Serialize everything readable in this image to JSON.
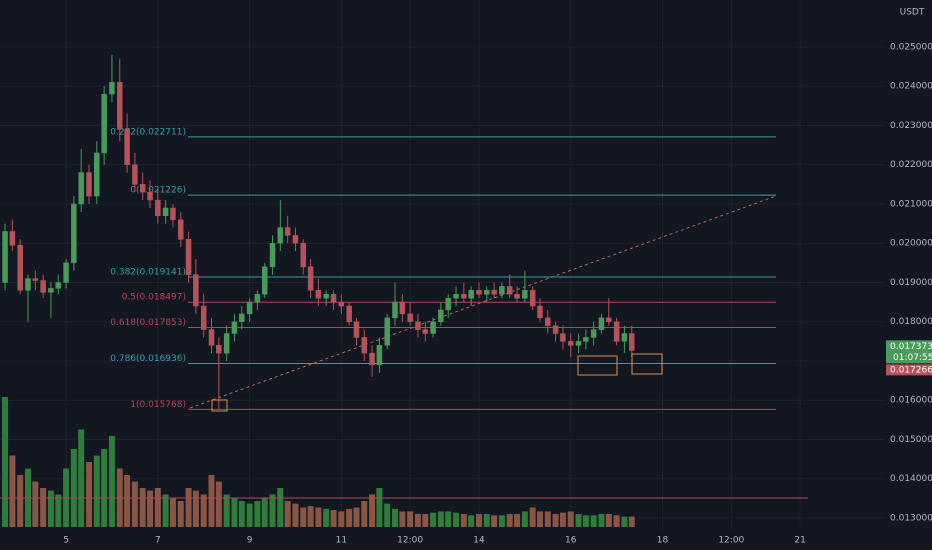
{
  "chart_data": {
    "type": "candlestick",
    "currency": "USDT",
    "up_color": "#4a9a5b",
    "down_color": "#b5535a",
    "volume_up_color": "#2f7d3a",
    "volume_down_color": "#8a5545",
    "grid": true,
    "xlim": [
      3.56,
      22.85
    ],
    "xticks": [
      {
        "value": 5,
        "label": "5"
      },
      {
        "value": 7,
        "label": "7"
      },
      {
        "value": 9,
        "label": "9"
      },
      {
        "value": 11,
        "label": "11"
      },
      {
        "value": 12.5,
        "label": "12:00"
      },
      {
        "value": 14,
        "label": "14"
      },
      {
        "value": 16,
        "label": "16"
      },
      {
        "value": 18,
        "label": "18"
      },
      {
        "value": 19.5,
        "label": "12:00"
      },
      {
        "value": 21,
        "label": "21"
      }
    ],
    "ylim": [
      0.012694,
      0.026197
    ],
    "yticks": [
      {
        "value": 0.013,
        "label": "0.013000"
      },
      {
        "value": 0.014,
        "label": "0.014000"
      },
      {
        "value": 0.015,
        "label": "0.015000"
      },
      {
        "value": 0.016,
        "label": "0.016000"
      },
      {
        "value": 0.017,
        "label": "0.017000"
      },
      {
        "value": 0.018,
        "label": "0.018000"
      },
      {
        "value": 0.019,
        "label": "0.019000"
      },
      {
        "value": 0.02,
        "label": "0.020000"
      },
      {
        "value": 0.021,
        "label": "0.021000"
      },
      {
        "value": 0.022,
        "label": "0.022000"
      },
      {
        "value": 0.023,
        "label": "0.023000"
      },
      {
        "value": 0.024,
        "label": "0.024000"
      },
      {
        "value": 0.025,
        "label": "0.025000"
      }
    ],
    "y2lim": [
      0,
      100
    ],
    "x": [
      3.67,
      3.83,
      4,
      4.17,
      4.33,
      4.5,
      4.67,
      4.83,
      5,
      5.17,
      5.33,
      5.5,
      5.67,
      5.83,
      6,
      6.17,
      6.33,
      6.5,
      6.67,
      6.83,
      7,
      7.17,
      7.33,
      7.5,
      7.67,
      7.83,
      8,
      8.17,
      8.33,
      8.5,
      8.67,
      8.83,
      9,
      9.17,
      9.33,
      9.5,
      9.67,
      9.83,
      10,
      10.17,
      10.33,
      10.5,
      10.67,
      10.83,
      11,
      11.17,
      11.33,
      11.5,
      11.67,
      11.83,
      12,
      12.17,
      12.33,
      12.5,
      12.67,
      12.83,
      13,
      13.17,
      13.33,
      13.5,
      13.67,
      13.83,
      14,
      14.17,
      14.33,
      14.5,
      14.67,
      14.83,
      15,
      15.17,
      15.33,
      15.5,
      15.67,
      15.83,
      16,
      16.17,
      16.33,
      16.5,
      16.67,
      16.83,
      17,
      17.17,
      17.33
    ],
    "open": [
      0.019,
      0.0203,
      0.01995,
      0.0188,
      0.0191,
      0.01905,
      0.01875,
      0.01885,
      0.019,
      0.0195,
      0.021,
      0.0218,
      0.0212,
      0.0223,
      0.0238,
      0.0241,
      0.0229,
      0.022,
      0.0215,
      0.0213,
      0.0211,
      0.0207,
      0.0209,
      0.0206,
      0.0201,
      0.0192,
      0.0184,
      0.0178,
      0.0174,
      0.0172,
      0.0177,
      0.018,
      0.0182,
      0.0185,
      0.0187,
      0.0194,
      0.02,
      0.0204,
      0.0202,
      0.02,
      0.0194,
      0.0188,
      0.0186,
      0.0187,
      0.0185,
      0.0184,
      0.018,
      0.0176,
      0.0172,
      0.0169,
      0.0174,
      0.0181,
      0.0185,
      0.0182,
      0.018,
      0.0178,
      0.0177,
      0.018,
      0.0183,
      0.0186,
      0.0187,
      0.0186,
      0.0188,
      0.0187,
      0.0188,
      0.0187,
      0.0189,
      0.0187,
      0.0186,
      0.0188,
      0.0184,
      0.0181,
      0.0179,
      0.0177,
      0.0175,
      0.0174,
      0.0175,
      0.0176,
      0.0178,
      0.0181,
      0.018,
      0.0175,
      0.0177
    ],
    "high": [
      0.0205,
      0.0206,
      0.0201,
      0.0192,
      0.0193,
      0.0192,
      0.019,
      0.0192,
      0.0196,
      0.0212,
      0.0224,
      0.022,
      0.0226,
      0.024,
      0.0248,
      0.0247,
      0.0233,
      0.0223,
      0.0218,
      0.0216,
      0.0214,
      0.0211,
      0.021,
      0.0208,
      0.0203,
      0.0196,
      0.0187,
      0.0181,
      0.0176,
      0.0179,
      0.0182,
      0.0184,
      0.0186,
      0.0188,
      0.0195,
      0.0202,
      0.0211,
      0.0207,
      0.0204,
      0.0201,
      0.0196,
      0.0191,
      0.0188,
      0.0188,
      0.0187,
      0.0185,
      0.0181,
      0.0178,
      0.0174,
      0.0176,
      0.0182,
      0.019,
      0.0187,
      0.0185,
      0.0182,
      0.018,
      0.0181,
      0.0185,
      0.0187,
      0.0189,
      0.019,
      0.0189,
      0.019,
      0.0189,
      0.019,
      0.019,
      0.0192,
      0.0189,
      0.0193,
      0.0189,
      0.0186,
      0.0183,
      0.018,
      0.0179,
      0.0177,
      0.0177,
      0.0178,
      0.018,
      0.0182,
      0.0186,
      0.0181,
      0.0179,
      0.0179
    ],
    "low": [
      0.0188,
      0.0198,
      0.0187,
      0.018,
      0.0188,
      0.0186,
      0.0181,
      0.0187,
      0.01885,
      0.0193,
      0.0208,
      0.021,
      0.021,
      0.022,
      0.0236,
      0.0226,
      0.0218,
      0.0213,
      0.0211,
      0.0209,
      0.0205,
      0.0205,
      0.0204,
      0.0199,
      0.019,
      0.0182,
      0.0176,
      0.0172,
      0.01576,
      0.017,
      0.0175,
      0.0178,
      0.018,
      0.0183,
      0.0186,
      0.0192,
      0.0198,
      0.02,
      0.0198,
      0.0192,
      0.0186,
      0.0184,
      0.0184,
      0.0183,
      0.0182,
      0.0179,
      0.0174,
      0.017,
      0.0166,
      0.0167,
      0.0173,
      0.0179,
      0.018,
      0.0179,
      0.0176,
      0.0175,
      0.0176,
      0.0179,
      0.0181,
      0.0184,
      0.0185,
      0.0184,
      0.0186,
      0.0185,
      0.0186,
      0.0186,
      0.0186,
      0.0185,
      0.0185,
      0.0183,
      0.018,
      0.0177,
      0.0175,
      0.0173,
      0.0171,
      0.0172,
      0.0173,
      0.0174,
      0.0177,
      0.0179,
      0.0174,
      0.0172,
      0.0171
    ],
    "close": [
      0.0203,
      0.01995,
      0.0188,
      0.0191,
      0.01905,
      0.01875,
      0.01885,
      0.019,
      0.0195,
      0.021,
      0.0218,
      0.0212,
      0.0223,
      0.0238,
      0.0241,
      0.0229,
      0.022,
      0.0215,
      0.0213,
      0.0211,
      0.0207,
      0.0209,
      0.0206,
      0.0201,
      0.0192,
      0.0184,
      0.0178,
      0.0174,
      0.0172,
      0.0177,
      0.018,
      0.0182,
      0.0185,
      0.0187,
      0.0194,
      0.02,
      0.0204,
      0.0202,
      0.02,
      0.0194,
      0.0188,
      0.0186,
      0.0187,
      0.0185,
      0.0184,
      0.018,
      0.0176,
      0.0172,
      0.0169,
      0.0174,
      0.0181,
      0.0185,
      0.0182,
      0.018,
      0.0178,
      0.0177,
      0.018,
      0.0183,
      0.0186,
      0.0187,
      0.0186,
      0.0188,
      0.0187,
      0.0188,
      0.0187,
      0.0189,
      0.0187,
      0.0186,
      0.0188,
      0.0184,
      0.0181,
      0.0179,
      0.0177,
      0.0175,
      0.0174,
      0.0175,
      0.0176,
      0.0178,
      0.0181,
      0.018,
      0.0175,
      0.0177,
      0.017266
    ],
    "volume": [
      100,
      55,
      40,
      45,
      35,
      30,
      28,
      25,
      45,
      60,
      75,
      50,
      55,
      60,
      70,
      45,
      40,
      35,
      30,
      28,
      30,
      25,
      22,
      20,
      30,
      28,
      25,
      40,
      35,
      25,
      22,
      20,
      18,
      20,
      22,
      25,
      30,
      20,
      18,
      15,
      16,
      15,
      14,
      13,
      12,
      14,
      15,
      20,
      25,
      30,
      18,
      14,
      12,
      12,
      10,
      10,
      11,
      12,
      12,
      11,
      10,
      9,
      10,
      10,
      9,
      9,
      10,
      10,
      12,
      15,
      12,
      12,
      10,
      11,
      12,
      10,
      9,
      9,
      10,
      10,
      9,
      8,
      8
    ],
    "fib_levels": [
      {
        "label": "0.272(0.022711)",
        "value": 0.022711,
        "color": "#3a9ea6"
      },
      {
        "label": "0(0.021226)",
        "value": 0.021226,
        "color": "#3a9ea6"
      },
      {
        "label": "0.382(0.019141)",
        "value": 0.019141,
        "color": "#3a9ea6"
      },
      {
        "label": "0.5(0.018497)",
        "value": 0.018497,
        "color": "#b8425f"
      },
      {
        "label": "0.618(0.017853)",
        "value": 0.017853,
        "color": "#b8425f"
      },
      {
        "label": "0.786(0.016936)",
        "value": 0.016936,
        "color": "#3a9ea6"
      },
      {
        "label": "1(0.015768)",
        "value": 0.015768,
        "color": "#b8425f"
      }
    ],
    "last_price": 0.017373,
    "countdown": "01:07:55",
    "current_close": 0.017266
  }
}
